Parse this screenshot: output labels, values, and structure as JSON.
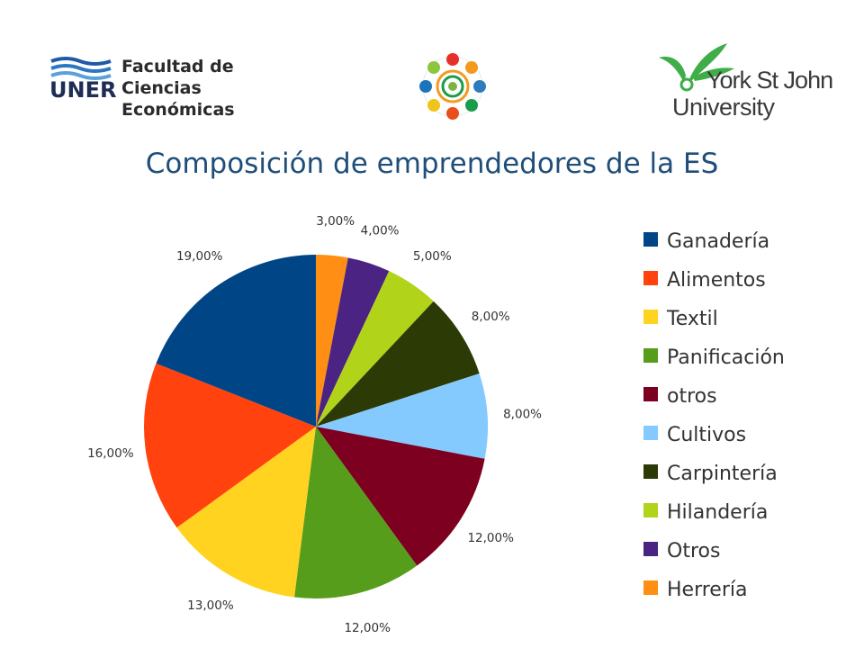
{
  "logos": {
    "uner": {
      "abbr": "UNER",
      "line1": "Facultad de Ciencias",
      "line2": "Económicas"
    },
    "york": {
      "line1": "York St John",
      "line2": "University"
    }
  },
  "title": "Composición de emprendedores de la ES",
  "chart_data": {
    "type": "pie",
    "title": "Composición de emprendedores de la ES",
    "legend_position": "right",
    "slices": [
      {
        "label": "Herrería",
        "value": 3.0,
        "display": "3,00%",
        "color": "#ff8f14"
      },
      {
        "label": "Otros",
        "value": 4.0,
        "display": "4,00%",
        "color": "#4b2483"
      },
      {
        "label": "Hilandería",
        "value": 5.0,
        "display": "5,00%",
        "color": "#b1d41a"
      },
      {
        "label": "Carpintería",
        "value": 8.0,
        "display": "8,00%",
        "color": "#2c3a06"
      },
      {
        "label": "Cultivos",
        "value": 8.0,
        "display": "8,00%",
        "color": "#84caff"
      },
      {
        "label": " otros",
        "value": 12.0,
        "display": "12,00%",
        "color": "#7d0021"
      },
      {
        "label": "Panificación",
        "value": 12.0,
        "display": "12,00%",
        "color": "#579d1c"
      },
      {
        "label": "Textil",
        "value": 13.0,
        "display": "13,00%",
        "color": "#ffd320"
      },
      {
        "label": "Alimentos",
        "value": 16.0,
        "display": "16,00%",
        "color": "#ff420e"
      },
      {
        "label": "Ganadería",
        "value": 19.0,
        "display": "19,00%",
        "color": "#004586"
      }
    ],
    "legend_order": [
      "Ganadería",
      "Alimentos",
      "Textil",
      "Panificación",
      " otros",
      "Cultivos",
      "Carpintería",
      "Hilandería",
      "Otros",
      "Herrería"
    ]
  }
}
